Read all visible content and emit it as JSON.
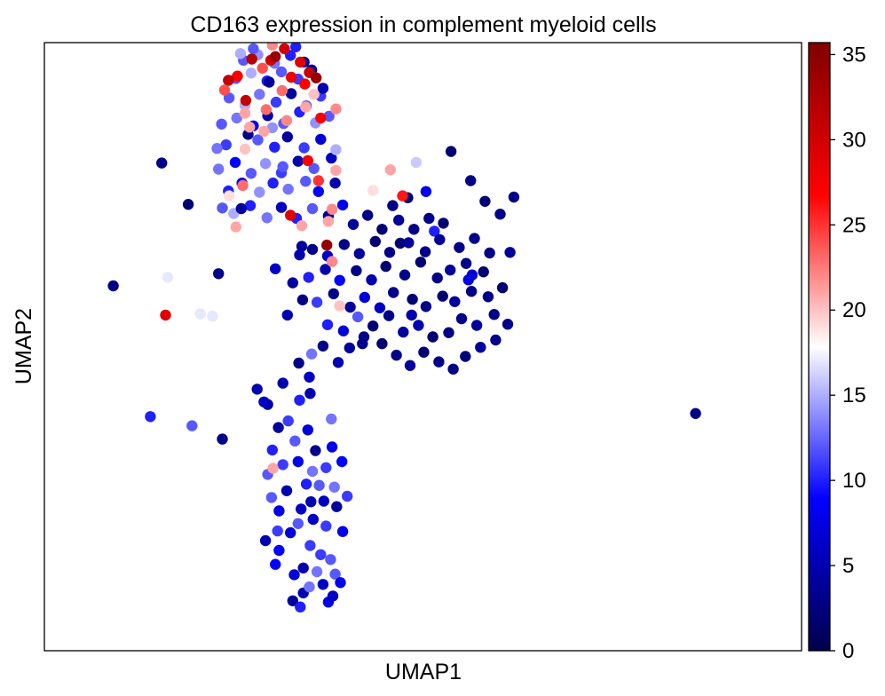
{
  "chart_data": {
    "type": "scatter",
    "title": "CD163 expression in complement myeloid cells",
    "xlabel": "UMAP1",
    "ylabel": "UMAP2",
    "xlim": [
      0,
      100
    ],
    "ylim": [
      0,
      100
    ],
    "x_ticks_shown": false,
    "y_ticks_shown": false,
    "grid": false,
    "colorbar": {
      "colormap": "seismic",
      "colors": [
        "#00004c",
        "#0000ff",
        "#ffffff",
        "#ff0000",
        "#800000"
      ],
      "range": [
        0,
        35.7
      ],
      "ticks": [
        0,
        5,
        10,
        15,
        20,
        25,
        30,
        35
      ],
      "tick_labels": [
        "0",
        "5",
        "10",
        "15",
        "20",
        "25",
        "30",
        "35"
      ]
    },
    "points": [
      [
        14.0,
        38.5,
        10
      ],
      [
        19.5,
        37.0,
        12
      ],
      [
        23.5,
        34.8,
        3
      ],
      [
        29.5,
        40.5,
        4
      ],
      [
        35.0,
        45.0,
        6
      ],
      [
        42.0,
        50.5,
        3
      ],
      [
        48.5,
        55.2,
        5
      ],
      [
        56.0,
        61.0,
        8
      ],
      [
        61.5,
        65.5,
        4
      ],
      [
        56.5,
        61.8,
        7
      ],
      [
        30.5,
        62.8,
        6
      ],
      [
        34.0,
        66.5,
        4
      ],
      [
        51.5,
        69.0,
        10
      ],
      [
        47.0,
        67.0,
        2
      ],
      [
        23.0,
        62.0,
        3
      ],
      [
        32.8,
        8.2,
        4
      ],
      [
        33.8,
        7.2,
        10
      ],
      [
        34.2,
        9.5,
        5
      ],
      [
        35.0,
        10.5,
        13
      ],
      [
        36.8,
        10.9,
        6
      ],
      [
        37.5,
        8.0,
        8
      ],
      [
        38.1,
        9.0,
        6
      ],
      [
        30.5,
        14.2,
        9
      ],
      [
        33.0,
        12.5,
        7
      ],
      [
        34.2,
        13.6,
        5
      ],
      [
        36.0,
        13.0,
        13
      ],
      [
        38.4,
        12.6,
        12
      ],
      [
        39.1,
        11.2,
        8
      ],
      [
        31.0,
        16.5,
        9
      ],
      [
        35.1,
        17.3,
        11
      ],
      [
        36.5,
        15.8,
        11
      ],
      [
        37.8,
        15.0,
        12
      ],
      [
        29.2,
        18.1,
        5
      ],
      [
        30.8,
        19.7,
        11
      ],
      [
        32.5,
        19.4,
        7
      ],
      [
        33.5,
        20.9,
        12
      ],
      [
        35.5,
        21.6,
        6
      ],
      [
        37.2,
        20.5,
        11
      ],
      [
        39.4,
        19.6,
        8
      ],
      [
        31.0,
        23.0,
        8
      ],
      [
        33.9,
        23.3,
        6
      ],
      [
        35.2,
        24.5,
        5
      ],
      [
        36.9,
        24.6,
        6
      ],
      [
        38.6,
        23.7,
        4
      ],
      [
        30.0,
        25.2,
        12
      ],
      [
        32.0,
        26.3,
        5
      ],
      [
        34.6,
        27.4,
        10
      ],
      [
        36.3,
        27.2,
        12
      ],
      [
        38.3,
        26.9,
        13
      ],
      [
        40.0,
        25.4,
        11
      ],
      [
        29.5,
        29.0,
        12
      ],
      [
        31.5,
        30.6,
        11
      ],
      [
        33.5,
        31.1,
        8
      ],
      [
        35.4,
        29.5,
        13
      ],
      [
        37.2,
        30.1,
        11
      ],
      [
        39.3,
        31.1,
        9
      ],
      [
        30.1,
        33.0,
        10
      ],
      [
        33.1,
        34.5,
        12
      ],
      [
        35.8,
        32.9,
        3
      ],
      [
        38.0,
        33.5,
        8
      ],
      [
        30.9,
        36.7,
        4
      ],
      [
        32.2,
        37.8,
        11
      ],
      [
        34.8,
        36.3,
        7
      ],
      [
        37.9,
        38.1,
        13
      ],
      [
        29.0,
        40.9,
        6
      ],
      [
        33.7,
        41.2,
        10
      ],
      [
        35.1,
        42.3,
        5
      ],
      [
        28.1,
        43.0,
        5
      ],
      [
        31.5,
        44.0,
        5
      ],
      [
        33.6,
        47.3,
        3
      ],
      [
        35.3,
        48.8,
        13
      ],
      [
        36.8,
        50.1,
        3
      ],
      [
        38.8,
        47.4,
        5
      ],
      [
        40.3,
        49.8,
        4
      ],
      [
        42.2,
        51.6,
        3
      ],
      [
        44.6,
        50.5,
        2
      ],
      [
        46.5,
        48.6,
        3
      ],
      [
        48.3,
        46.9,
        4
      ],
      [
        50.1,
        49.1,
        2
      ],
      [
        52.1,
        47.5,
        3
      ],
      [
        54.0,
        46.3,
        3
      ],
      [
        55.6,
        48.4,
        2
      ],
      [
        57.6,
        49.9,
        4
      ],
      [
        59.6,
        51.1,
        3
      ],
      [
        37.4,
        53.6,
        10
      ],
      [
        39.5,
        52.6,
        7
      ],
      [
        41.4,
        54.9,
        12
      ],
      [
        43.4,
        53.4,
        2
      ],
      [
        45.5,
        55.1,
        3
      ],
      [
        47.4,
        52.4,
        4
      ],
      [
        49.4,
        53.5,
        5
      ],
      [
        51.3,
        51.6,
        2
      ],
      [
        53.4,
        52.3,
        3
      ],
      [
        55.1,
        54.6,
        3
      ],
      [
        57.1,
        53.5,
        4
      ],
      [
        59.4,
        55.3,
        3
      ],
      [
        61.2,
        53.7,
        3
      ],
      [
        32.1,
        55.2,
        5
      ],
      [
        34.1,
        57.7,
        3
      ],
      [
        36.0,
        57.3,
        11
      ],
      [
        38.2,
        58.7,
        3
      ],
      [
        40.4,
        56.5,
        4
      ],
      [
        42.3,
        58.1,
        7
      ],
      [
        44.3,
        56.4,
        6
      ],
      [
        46.1,
        58.9,
        3
      ],
      [
        48.6,
        57.8,
        2
      ],
      [
        50.4,
        56.6,
        3
      ],
      [
        52.6,
        58.3,
        2
      ],
      [
        54.2,
        57.4,
        4
      ],
      [
        56.4,
        59.1,
        3
      ],
      [
        58.6,
        58.2,
        3
      ],
      [
        60.5,
        59.7,
        2
      ],
      [
        32.8,
        60.5,
        4
      ],
      [
        34.9,
        61.4,
        10
      ],
      [
        37.1,
        62.7,
        5
      ],
      [
        39.0,
        60.9,
        9
      ],
      [
        41.2,
        62.5,
        3
      ],
      [
        43.2,
        61.0,
        5
      ],
      [
        45.1,
        63.2,
        2
      ],
      [
        47.6,
        61.8,
        3
      ],
      [
        49.7,
        63.9,
        2
      ],
      [
        51.9,
        61.3,
        3
      ],
      [
        53.6,
        62.6,
        4
      ],
      [
        55.7,
        63.7,
        3
      ],
      [
        58.0,
        62.3,
        2
      ],
      [
        33.7,
        65.1,
        5
      ],
      [
        35.4,
        66.0,
        3
      ],
      [
        37.4,
        64.9,
        6
      ],
      [
        39.6,
        66.8,
        3
      ],
      [
        41.6,
        65.3,
        4
      ],
      [
        43.7,
        67.3,
        2
      ],
      [
        45.6,
        65.5,
        3
      ],
      [
        48.1,
        67.1,
        4
      ],
      [
        50.3,
        65.6,
        3
      ],
      [
        52.2,
        67.6,
        4
      ],
      [
        54.8,
        66.3,
        3
      ],
      [
        56.8,
        67.8,
        3
      ],
      [
        58.8,
        65.4,
        3
      ],
      [
        44.6,
        69.3,
        2
      ],
      [
        46.8,
        70.8,
        4
      ],
      [
        48.8,
        69.3,
        3
      ],
      [
        50.8,
        71.1,
        3
      ],
      [
        52.7,
        70.3,
        2
      ],
      [
        42.7,
        71.6,
        3
      ],
      [
        40.8,
        70.1,
        4
      ],
      [
        46.0,
        73.2,
        3
      ],
      [
        48.0,
        74.5,
        2
      ],
      [
        23.5,
        72.8,
        12
      ],
      [
        25.0,
        71.9,
        15
      ],
      [
        27.2,
        73.2,
        10
      ],
      [
        29.4,
        71.2,
        13
      ],
      [
        31.3,
        72.9,
        6
      ],
      [
        33.3,
        71.1,
        10
      ],
      [
        35.4,
        72.7,
        12
      ],
      [
        37.5,
        71.5,
        4
      ],
      [
        39.4,
        73.3,
        8
      ],
      [
        24.3,
        75.6,
        10
      ],
      [
        26.1,
        76.9,
        8
      ],
      [
        28.4,
        75.4,
        14
      ],
      [
        30.2,
        76.9,
        10
      ],
      [
        32.2,
        75.9,
        13
      ],
      [
        34.5,
        77.2,
        12
      ],
      [
        36.2,
        75.5,
        9
      ],
      [
        38.4,
        76.9,
        5
      ],
      [
        23.0,
        79.2,
        13
      ],
      [
        25.2,
        80.3,
        9
      ],
      [
        27.3,
        78.5,
        12
      ],
      [
        29.2,
        80.1,
        14
      ],
      [
        31.3,
        78.6,
        11
      ],
      [
        33.5,
        80.5,
        5
      ],
      [
        35.6,
        79.3,
        12
      ],
      [
        37.9,
        81.0,
        6
      ],
      [
        24.0,
        83.2,
        11
      ],
      [
        26.5,
        82.5,
        20
      ],
      [
        28.2,
        84.0,
        12
      ],
      [
        30.4,
        82.8,
        10
      ],
      [
        32.1,
        84.5,
        4
      ],
      [
        34.3,
        82.7,
        11
      ],
      [
        36.5,
        84.1,
        7
      ],
      [
        38.5,
        82.4,
        15
      ],
      [
        23.4,
        86.6,
        12
      ],
      [
        25.4,
        87.6,
        13
      ],
      [
        27.6,
        86.3,
        9
      ],
      [
        29.5,
        88.0,
        5
      ],
      [
        31.6,
        86.7,
        12
      ],
      [
        33.7,
        88.6,
        10
      ],
      [
        35.8,
        86.8,
        14
      ],
      [
        37.6,
        87.9,
        12
      ],
      [
        24.4,
        90.9,
        12
      ],
      [
        26.5,
        89.7,
        15
      ],
      [
        28.4,
        91.5,
        13
      ],
      [
        30.6,
        90.2,
        11
      ],
      [
        32.6,
        91.6,
        4
      ],
      [
        34.6,
        89.6,
        12
      ],
      [
        36.5,
        91.2,
        11
      ],
      [
        25.3,
        94.1,
        12
      ],
      [
        27.3,
        95.0,
        15
      ],
      [
        29.4,
        93.7,
        10
      ],
      [
        31.3,
        95.2,
        12
      ],
      [
        33.5,
        94.0,
        11
      ],
      [
        35.3,
        95.5,
        4
      ],
      [
        26.3,
        97.1,
        12
      ],
      [
        28.2,
        98.0,
        14
      ],
      [
        30.4,
        96.6,
        13
      ],
      [
        32.5,
        97.9,
        10
      ],
      [
        34.3,
        96.8,
        4
      ],
      [
        27.6,
        99.0,
        12
      ],
      [
        33.2,
        99.3,
        10
      ],
      [
        25.9,
        98.2,
        15
      ],
      [
        29.7,
        93.5,
        4
      ],
      [
        36.8,
        92.5,
        5
      ],
      [
        22.8,
        82.6,
        13
      ],
      [
        30.1,
        86.0,
        14
      ],
      [
        31.5,
        79.6,
        12
      ],
      [
        26.9,
        84.9,
        3
      ],
      [
        25.5,
        94.5,
        27
      ],
      [
        26.6,
        90.5,
        31
      ],
      [
        27.4,
        97.3,
        32
      ],
      [
        28.8,
        95.8,
        24
      ],
      [
        29.9,
        97.1,
        30
      ],
      [
        30.1,
        99.6,
        22
      ],
      [
        31.7,
        99.0,
        30
      ],
      [
        30.5,
        97.7,
        34
      ],
      [
        32.6,
        94.3,
        28
      ],
      [
        33.8,
        96.8,
        29
      ],
      [
        35.0,
        95.1,
        31
      ],
      [
        35.9,
        94.2,
        34
      ],
      [
        35.6,
        91.5,
        20
      ],
      [
        34.4,
        93.2,
        27
      ],
      [
        31.4,
        92.1,
        23
      ],
      [
        34.5,
        89.4,
        21
      ],
      [
        38.5,
        89.1,
        22
      ],
      [
        29.3,
        89.0,
        23
      ],
      [
        32.0,
        87.2,
        22
      ],
      [
        26.5,
        88.4,
        21
      ],
      [
        27.1,
        86.1,
        21
      ],
      [
        24.3,
        93.8,
        31
      ],
      [
        23.8,
        92.2,
        24
      ],
      [
        36.5,
        87.6,
        27
      ],
      [
        29.0,
        85.4,
        21
      ],
      [
        34.8,
        80.6,
        27
      ],
      [
        38.5,
        79.0,
        21
      ],
      [
        36.2,
        77.3,
        25
      ],
      [
        45.7,
        79.1,
        21
      ],
      [
        47.3,
        74.8,
        26
      ],
      [
        38.0,
        72.6,
        22
      ],
      [
        37.5,
        70.6,
        21
      ],
      [
        32.5,
        71.6,
        29
      ],
      [
        37.3,
        66.7,
        34
      ],
      [
        20.6,
        55.4,
        17
      ],
      [
        22.2,
        55.0,
        17
      ],
      [
        16.3,
        61.4,
        17
      ],
      [
        25.3,
        69.7,
        21
      ],
      [
        30.2,
        30.0,
        21
      ],
      [
        34.0,
        69.9,
        21
      ],
      [
        39.0,
        56.7,
        20
      ],
      [
        16.0,
        55.2,
        29
      ],
      [
        26.2,
        76.5,
        23
      ],
      [
        24.4,
        74.8,
        19
      ],
      [
        38.0,
        64.0,
        22
      ],
      [
        86.0,
        39.0,
        3
      ],
      [
        53.7,
        82.1,
        2
      ],
      [
        56.3,
        77.3,
        3
      ],
      [
        58.2,
        73.9,
        2
      ],
      [
        60.2,
        71.8,
        3
      ],
      [
        62.0,
        74.6,
        3
      ],
      [
        50.4,
        75.5,
        8
      ],
      [
        43.4,
        75.7,
        19
      ],
      [
        49.1,
        80.3,
        16
      ],
      [
        15.5,
        80.2,
        3
      ],
      [
        19.0,
        73.4,
        2
      ],
      [
        9.1,
        60.0,
        3
      ],
      [
        26.0,
        72.7,
        4
      ]
    ]
  }
}
